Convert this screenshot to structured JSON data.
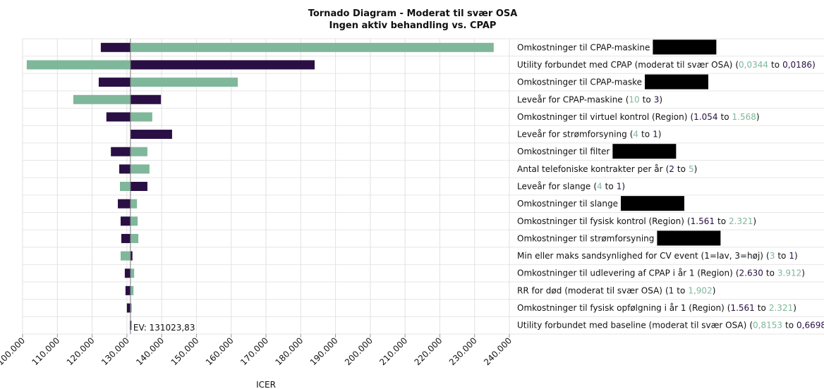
{
  "chart_data": {
    "type": "tornado",
    "title": "Tornado Diagram - Moderat til svær OSA",
    "subtitle": "Ingen aktiv behandling vs. CPAP",
    "xlabel": "ICER",
    "ev": 131023.83,
    "ev_label": "EV: 131023,83",
    "xlim": [
      100000,
      240000
    ],
    "xticks": [
      {
        "value": 100000,
        "label": "100.000"
      },
      {
        "value": 110000,
        "label": "110.000"
      },
      {
        "value": 120000,
        "label": "120.000"
      },
      {
        "value": 130000,
        "label": "130.000"
      },
      {
        "value": 140000,
        "label": "140.000"
      },
      {
        "value": 150000,
        "label": "150.000"
      },
      {
        "value": 160000,
        "label": "160.000"
      },
      {
        "value": 170000,
        "label": "170.000"
      },
      {
        "value": 180000,
        "label": "180.000"
      },
      {
        "value": 190000,
        "label": "190.000"
      },
      {
        "value": 200000,
        "label": "200.000"
      },
      {
        "value": 210000,
        "label": "210.000"
      },
      {
        "value": 220000,
        "label": "220.000"
      },
      {
        "value": 230000,
        "label": "230.000"
      },
      {
        "value": 240000,
        "label": "240.000"
      }
    ],
    "grid": true,
    "categories": [
      "Omkostninger til CPAP-maskine",
      "Utility forbundet med CPAP (moderat til svær OSA)",
      "Omkostninger til CPAP-maske",
      "Leveår for CPAP-maskine",
      "Omkostninger til virtuel kontrol (Region)",
      "Leveår for strømforsyning",
      "Omkostninger til filter",
      "Antal telefoniske kontrakter per år",
      "Leveår for slange",
      "Omkostninger til slange",
      "Omkostninger til fysisk kontrol (Region)",
      "Omkostninger til strømforsyning",
      "Min eller maks sandsynlighed for CV event (1=lav, 3=høj)",
      "Omkostninger til udlevering af CPAP i år 1 (Region)",
      "RR for død (moderat til svær OSA)",
      "Omkostninger til fysisk opfølgning i år 1 (Region)",
      "Utility forbundet med baseline (moderat til svær OSA)"
    ],
    "range_open": "(",
    "range_separator": "to",
    "range_close": ")",
    "ranges": [
      null,
      {
        "from": "0,0344",
        "to": "0,0186",
        "from_series": 0
      },
      null,
      {
        "from": "10",
        "to": "3",
        "from_series": 0
      },
      {
        "from": "1.054",
        "to": "1.568",
        "from_series": 1
      },
      {
        "from": "4",
        "to": "1",
        "from_series": 0
      },
      null,
      {
        "from": "2",
        "to": "5",
        "from_series": 1
      },
      {
        "from": "4",
        "to": "1",
        "from_series": 0
      },
      null,
      {
        "from": "1.561",
        "to": "2.321",
        "from_series": 1
      },
      null,
      {
        "from": "3",
        "to": "1",
        "from_series": 0
      },
      {
        "from": "2.630",
        "to": "3.912",
        "from_series": 1
      },
      {
        "from": "1",
        "to": "1,902",
        "from_series": 1
      },
      {
        "from": "1.561",
        "to": "2.321",
        "from_series": 1
      },
      {
        "from": "0,8153",
        "to": "0,6698",
        "from_series": 0
      }
    ],
    "redacted": [
      true,
      false,
      true,
      false,
      false,
      false,
      true,
      false,
      false,
      true,
      false,
      true,
      false,
      false,
      false,
      false,
      false
    ],
    "series": [
      {
        "color": "#7fb79a",
        "values": [
          235500,
          101200,
          161900,
          114600,
          137300,
          131023.83,
          135900,
          136500,
          128000,
          132900,
          133100,
          133300,
          128200,
          132100,
          131900,
          131400,
          130800
        ]
      },
      {
        "color": "#2a0f45",
        "values": [
          122500,
          184000,
          121900,
          139800,
          124100,
          143000,
          125400,
          127800,
          135900,
          127400,
          128200,
          128400,
          131600,
          129400,
          129600,
          130000,
          131300
        ]
      }
    ]
  }
}
